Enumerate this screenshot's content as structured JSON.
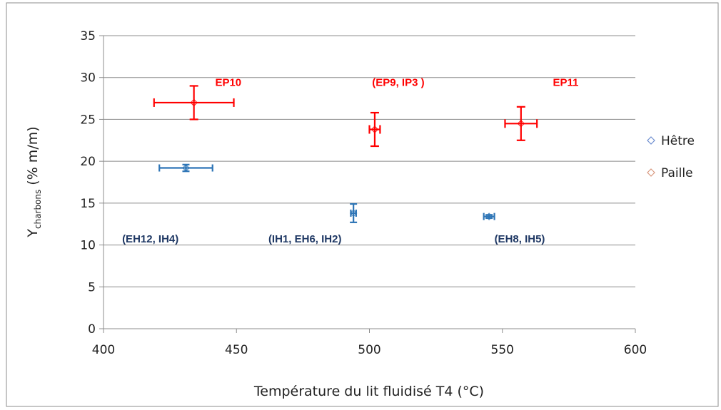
{
  "chart_data": {
    "type": "scatter",
    "xlabel": "Température du lit fluidisé T4 (°C)",
    "ylabel_main": "Y",
    "ylabel_sub": "charbons",
    "ylabel_unit": " (% m/m)",
    "xlim": [
      400,
      600
    ],
    "ylim": [
      0,
      35
    ],
    "x_ticks": [
      400,
      450,
      500,
      550,
      600
    ],
    "y_ticks": [
      0,
      5,
      10,
      15,
      20,
      25,
      30,
      35
    ],
    "grid": "horizontal",
    "legend_position": "right",
    "series": [
      {
        "name": "Hêtre",
        "color": "#2e75b6",
        "label_color": "#1f3864",
        "points": [
          {
            "x": 431,
            "y": 19.2,
            "x_err": 10,
            "y_err": 0.4
          },
          {
            "x": 494,
            "y": 13.8,
            "x_err": 1,
            "y_err": 1.1
          },
          {
            "x": 545,
            "y": 13.4,
            "x_err": 2,
            "y_err": 0.2
          }
        ]
      },
      {
        "name": "Paille",
        "color": "#ff0000",
        "label_color": "#ff0000",
        "points": [
          {
            "x": 434,
            "y": 27,
            "x_err": 15,
            "y_err": 2
          },
          {
            "x": 502,
            "y": 23.8,
            "x_err": 2,
            "y_err": 2
          },
          {
            "x": 557,
            "y": 24.5,
            "x_err": 6,
            "y_err": 2
          }
        ]
      }
    ],
    "annotations": [
      {
        "text": "EP10",
        "x": 442,
        "y": 29,
        "color": "#ff0000"
      },
      {
        "text": "(EP9, IP3 )",
        "x": 501,
        "y": 29,
        "color": "#ff0000"
      },
      {
        "text": "EP11",
        "x": 569,
        "y": 29,
        "color": "#ff0000"
      },
      {
        "text": "(EH12, IH4)",
        "x": 407,
        "y": 10.3,
        "color": "#1f3864"
      },
      {
        "text": "(IH1, EH6, IH2)",
        "x": 462,
        "y": 10.3,
        "color": "#1f3864"
      },
      {
        "text": "(EH8, IH5)",
        "x": 547,
        "y": 10.3,
        "color": "#1f3864"
      }
    ]
  }
}
